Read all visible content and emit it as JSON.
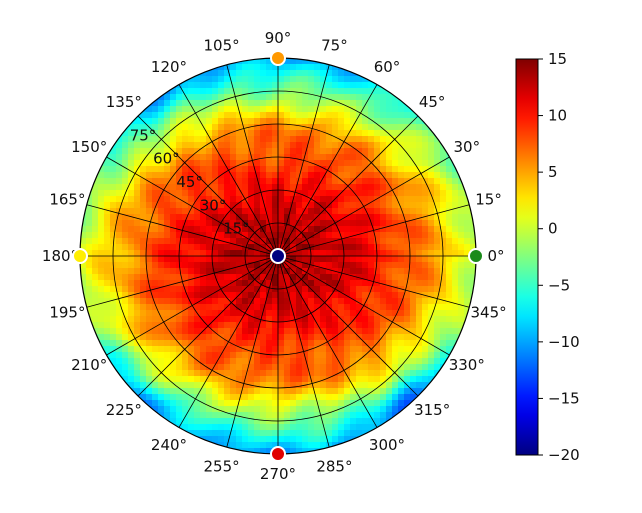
{
  "chart_data": {
    "type": "heatmap",
    "projection": "polar",
    "title": "",
    "angular_ticks": [
      "0°",
      "15°",
      "30°",
      "45°",
      "60°",
      "75°",
      "90°",
      "105°",
      "120°",
      "135°",
      "150°",
      "165°",
      "180°",
      "195°",
      "210°",
      "225°",
      "240°",
      "255°",
      "270°",
      "285°",
      "300°",
      "315°",
      "330°",
      "345°"
    ],
    "radial_ticks": [
      "15°",
      "30°",
      "45°",
      "60°",
      "75°"
    ],
    "radial_range": [
      0,
      90
    ],
    "grid": true,
    "colorbar": {
      "colormap": "jet",
      "range": [
        -20,
        15
      ],
      "ticks": [
        "15",
        "10",
        "5",
        "0",
        "−5",
        "−10",
        "−15",
        "−20"
      ]
    },
    "field_samples": [
      {
        "azimuth_deg": 0,
        "elevation_deg": 10,
        "value": 13
      },
      {
        "azimuth_deg": 0,
        "elevation_deg": 30,
        "value": 12
      },
      {
        "azimuth_deg": 0,
        "elevation_deg": 50,
        "value": 8
      },
      {
        "azimuth_deg": 0,
        "elevation_deg": 70,
        "value": -2
      },
      {
        "azimuth_deg": 180,
        "elevation_deg": 30,
        "value": 12
      },
      {
        "azimuth_deg": 180,
        "elevation_deg": 70,
        "value": -2
      },
      {
        "azimuth_deg": 90,
        "elevation_deg": 30,
        "value": 10
      },
      {
        "azimuth_deg": 90,
        "elevation_deg": 60,
        "value": 2
      },
      {
        "azimuth_deg": 270,
        "elevation_deg": 60,
        "value": 3
      },
      {
        "azimuth_deg": 135,
        "elevation_deg": 85,
        "value": -8
      },
      {
        "azimuth_deg": 225,
        "elevation_deg": 85,
        "value": -9
      },
      {
        "azimuth_deg": 315,
        "elevation_deg": 85,
        "value": -10
      }
    ],
    "markers": [
      {
        "azimuth_deg": 0,
        "elevation_deg": 90,
        "color": "#1a8a1a"
      },
      {
        "azimuth_deg": 90,
        "elevation_deg": 90,
        "color": "#ff9900"
      },
      {
        "azimuth_deg": 180,
        "elevation_deg": 90,
        "color": "#ffee00"
      },
      {
        "azimuth_deg": 270,
        "elevation_deg": 90,
        "color": "#e00000"
      },
      {
        "azimuth_deg": 0,
        "elevation_deg": 0,
        "color": "#000080"
      }
    ]
  }
}
